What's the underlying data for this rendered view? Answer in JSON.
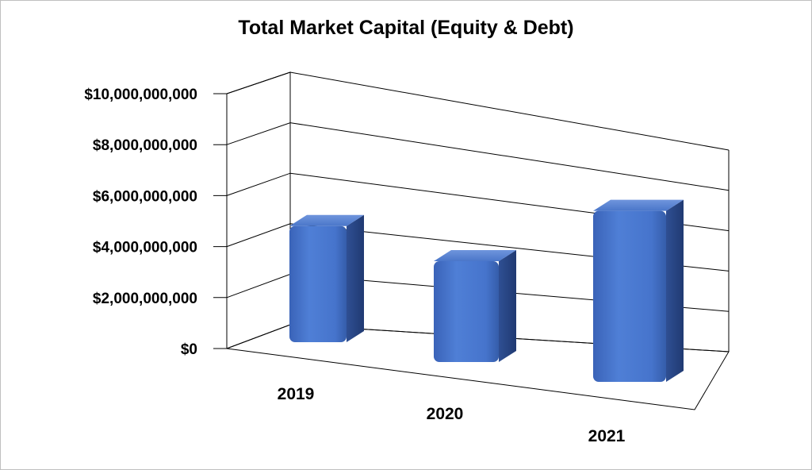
{
  "chart_data": {
    "type": "bar",
    "title": "Total Market Capital (Equity & Debt)",
    "xlabel": "",
    "ylabel": "",
    "categories": [
      "2019",
      "2020",
      "2021"
    ],
    "values": [
      5300000000,
      4600000000,
      7800000000
    ],
    "ylim": [
      0,
      10000000000
    ],
    "yticks": [
      0,
      2000000000,
      4000000000,
      6000000000,
      8000000000,
      10000000000
    ],
    "ytick_labels": [
      "$0",
      "$2,000,000,000",
      "$4,000,000,000",
      "$6,000,000,000",
      "$8,000,000,000",
      "$10,000,000,000"
    ],
    "grid": true,
    "legend": "none",
    "style": "3d-column",
    "bar_color": "#4472C4"
  }
}
